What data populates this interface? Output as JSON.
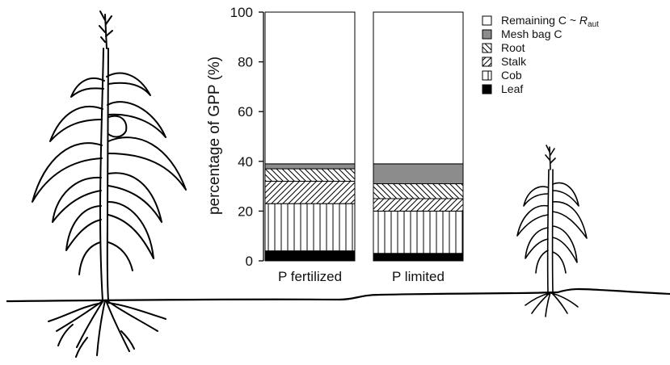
{
  "chart_data": {
    "type": "bar",
    "stacked": true,
    "categories": [
      "P fertilized",
      "P limited"
    ],
    "ylabel": "percentage of GPP (%)",
    "ylim": [
      0,
      100
    ],
    "yticks": [
      0,
      20,
      40,
      60,
      80,
      100
    ],
    "series": [
      {
        "name": "Leaf",
        "values": [
          4,
          3
        ],
        "pattern": "solid-black"
      },
      {
        "name": "Cob",
        "values": [
          19,
          17
        ],
        "pattern": "vertical-lines"
      },
      {
        "name": "Stalk",
        "values": [
          9,
          5
        ],
        "pattern": "diagonal-forward"
      },
      {
        "name": "Root",
        "values": [
          5,
          6
        ],
        "pattern": "diagonal-back"
      },
      {
        "name": "Mesh bag C",
        "values": [
          2,
          8
        ],
        "pattern": "solid-gray"
      },
      {
        "name": "Remaining C ~ R",
        "name_subscript": "aut",
        "values": [
          61,
          61
        ],
        "pattern": "white"
      }
    ],
    "legend_order": [
      "Remaining C ~ R",
      "Mesh bag C",
      "Root",
      "Stalk",
      "Cob",
      "Leaf"
    ],
    "legend_position": "right",
    "grid": false
  },
  "illustration": {
    "left": "large-maize-plant",
    "right": "small-maize-plant",
    "ground": "soil-line"
  }
}
